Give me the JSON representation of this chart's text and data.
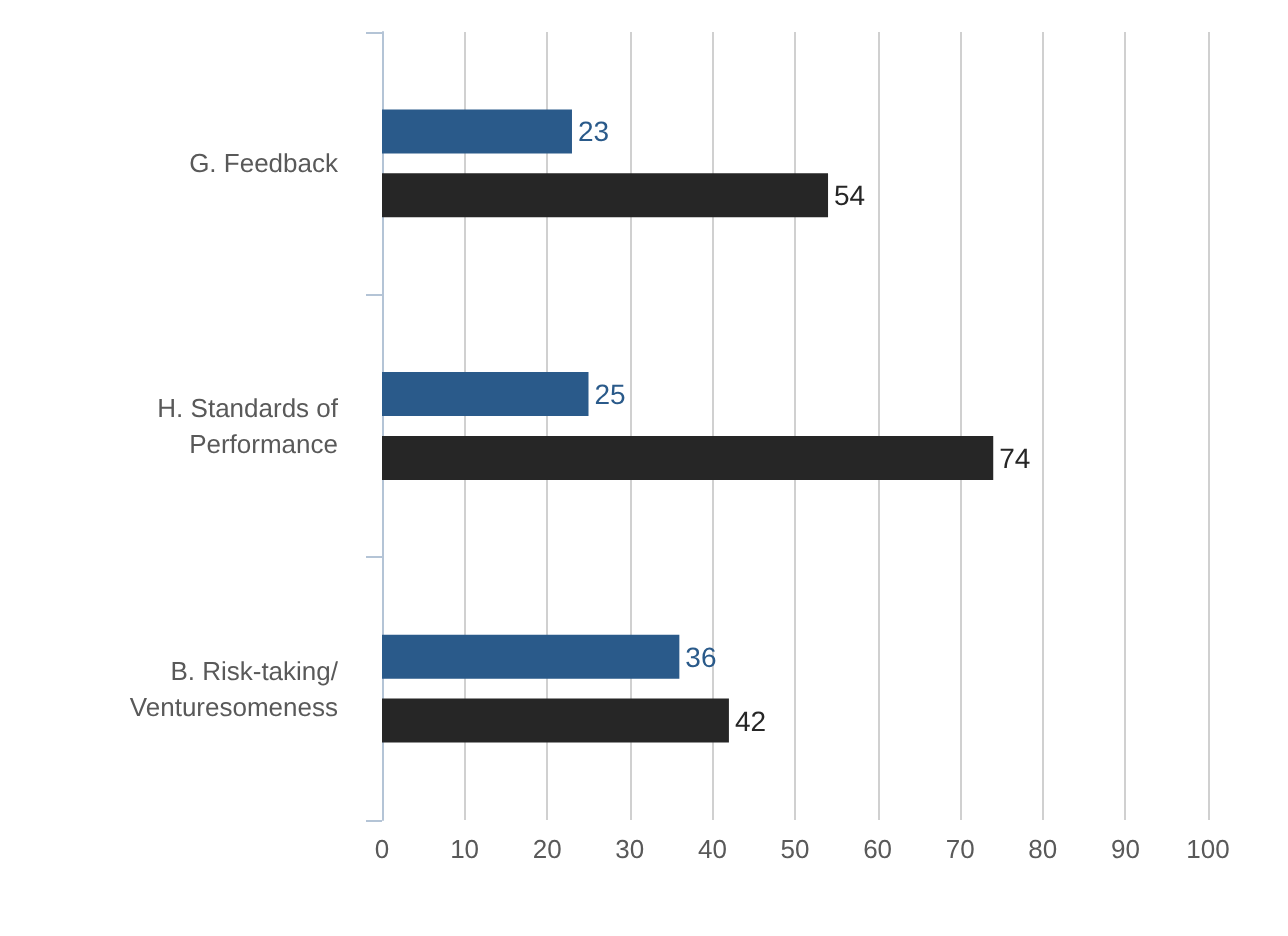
{
  "chart_data": {
    "type": "bar",
    "orientation": "horizontal",
    "categories": [
      "G. Feedback",
      "H. Standards of\nPerformance",
      "B. Risk-taking/\nVenturesomeness"
    ],
    "series": [
      {
        "color": "#2a5a8a",
        "values": [
          23,
          25,
          36
        ]
      },
      {
        "color": "#262626",
        "values": [
          54,
          74,
          42
        ]
      }
    ],
    "xlim": [
      0,
      100
    ],
    "xticks": [
      0,
      10,
      20,
      30,
      40,
      50,
      60,
      70,
      80,
      90,
      100
    ],
    "grid": "x",
    "data_labels": true
  }
}
